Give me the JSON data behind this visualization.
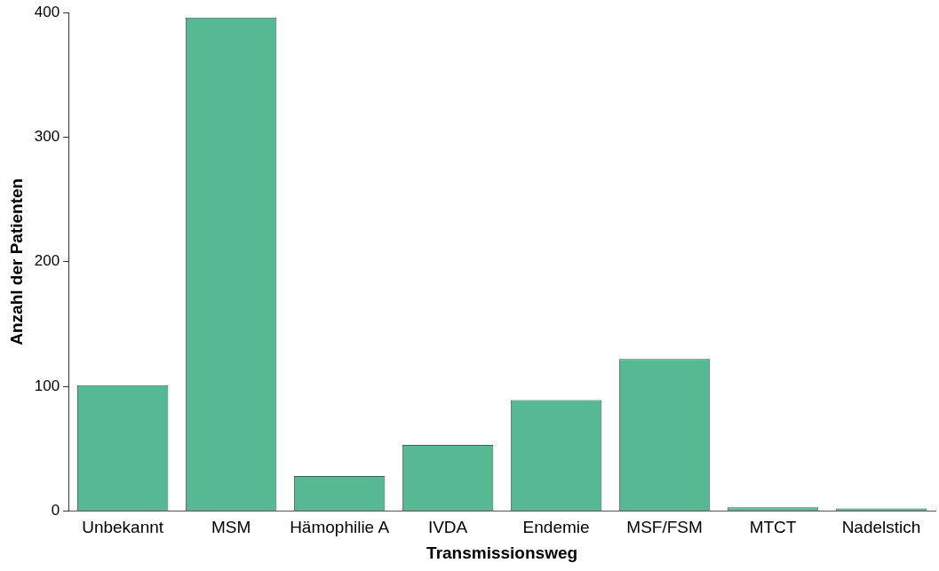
{
  "chart_data": {
    "type": "bar",
    "xlabel": "Transmissionsweg",
    "ylabel": "Anzahl der Patienten",
    "categories": [
      "Unbekannt",
      "MSM",
      "Hämophilie A",
      "IVDA",
      "Endemie",
      "MSF/FSM",
      "MTCT",
      "Nadelstich"
    ],
    "values": [
      101,
      396,
      28,
      53,
      89,
      122,
      3,
      2
    ],
    "color": "#57b894",
    "ylim": [
      0,
      400
    ],
    "yticks": [
      0,
      100,
      200,
      300,
      400
    ],
    "grid": false,
    "legend": false
  }
}
